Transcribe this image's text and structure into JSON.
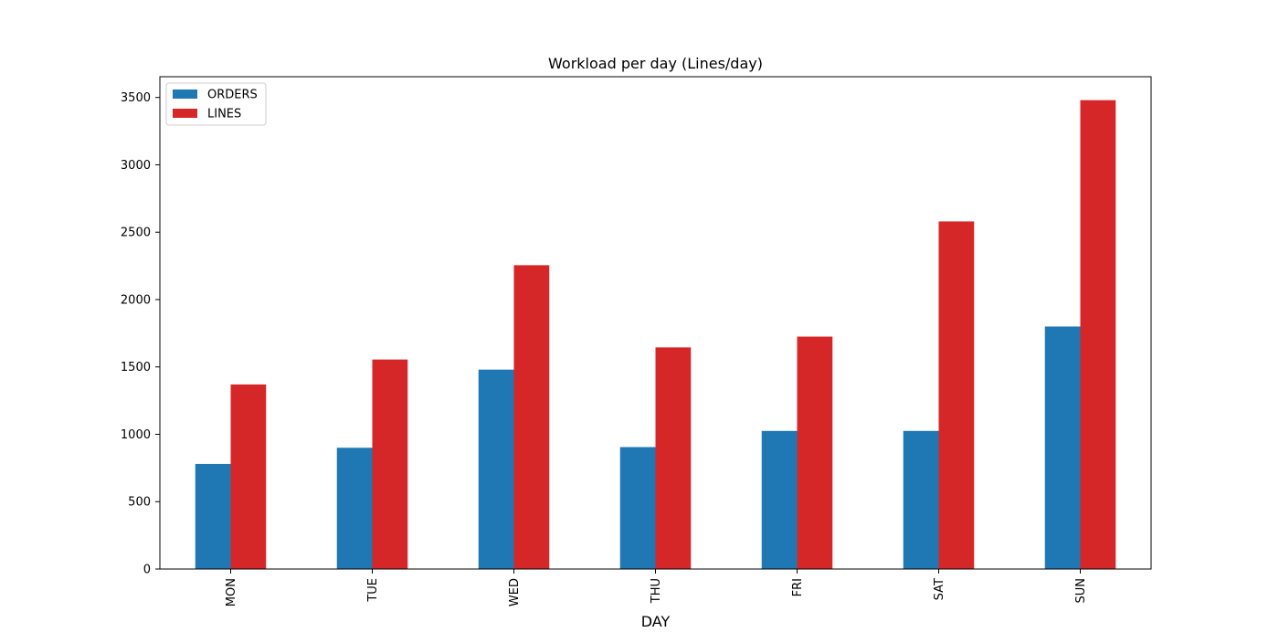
{
  "chart_data": {
    "type": "bar",
    "title": "Workload per day (Lines/day)",
    "xlabel": "DAY",
    "ylabel": "",
    "categories": [
      "MON",
      "TUE",
      "WED",
      "THU",
      "FRI",
      "SAT",
      "SUN"
    ],
    "series": [
      {
        "name": "ORDERS",
        "color": "#1f77b4",
        "values": [
          780,
          900,
          1480,
          905,
          1025,
          1025,
          1800
        ]
      },
      {
        "name": "LINES",
        "color": "#d62728",
        "values": [
          1370,
          1555,
          2255,
          1645,
          1725,
          2580,
          3480
        ]
      }
    ],
    "ylim": [
      0,
      3654
    ],
    "yticks": [
      0,
      500,
      1000,
      1500,
      2000,
      2500,
      3000,
      3500
    ],
    "ytick_labels": [
      "0",
      "500",
      "1000",
      "1500",
      "2000",
      "2500",
      "3000",
      "3500"
    ],
    "xtick_rotation": 90,
    "grid": false,
    "legend_position": "upper-left"
  }
}
